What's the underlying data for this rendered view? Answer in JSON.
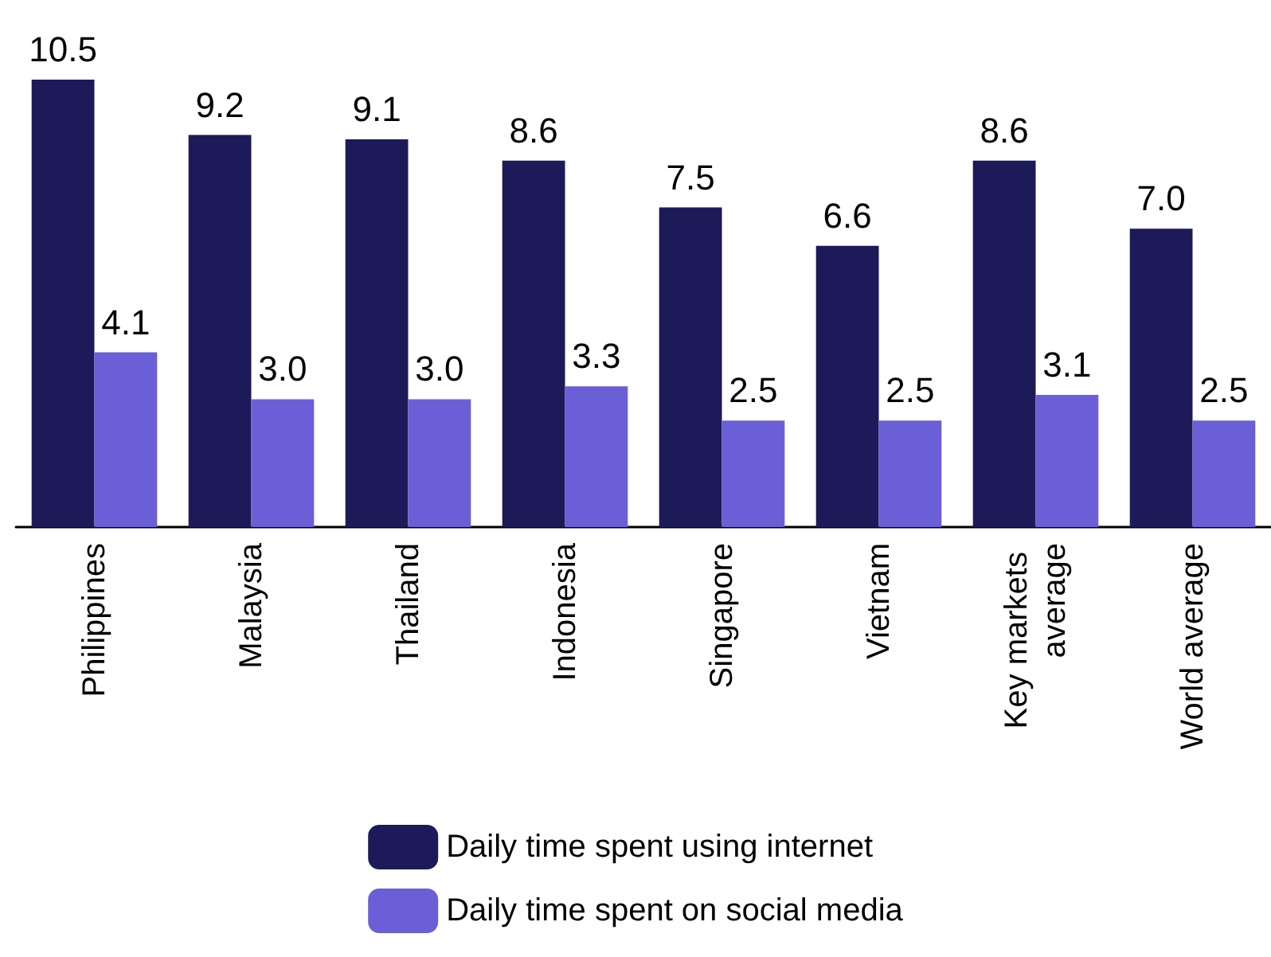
{
  "chart_data": {
    "type": "bar",
    "categories": [
      "Philippines",
      "Malaysia",
      "Thailand",
      "Indonesia",
      "Singapore",
      "Vietnam",
      "Key markets average",
      "World average"
    ],
    "series": [
      {
        "name": "Daily time spent using internet",
        "color": "#1c1a58",
        "values": [
          10.5,
          9.2,
          9.1,
          8.6,
          7.5,
          6.6,
          8.6,
          7.0
        ],
        "value_labels": [
          "10.5",
          "9.2",
          "9.1",
          "8.6",
          "7.5",
          "6.6",
          "8.6",
          "7.0"
        ]
      },
      {
        "name": "Daily time spent on social media",
        "color": "#6a5fd6",
        "values": [
          4.1,
          3.0,
          3.0,
          3.3,
          2.5,
          2.5,
          3.1,
          2.5
        ],
        "value_labels": [
          "4.1",
          "3.0",
          "3.0",
          "3.3",
          "2.5",
          "2.5",
          "3.1",
          "2.5"
        ]
      }
    ],
    "legend": "bottom"
  }
}
